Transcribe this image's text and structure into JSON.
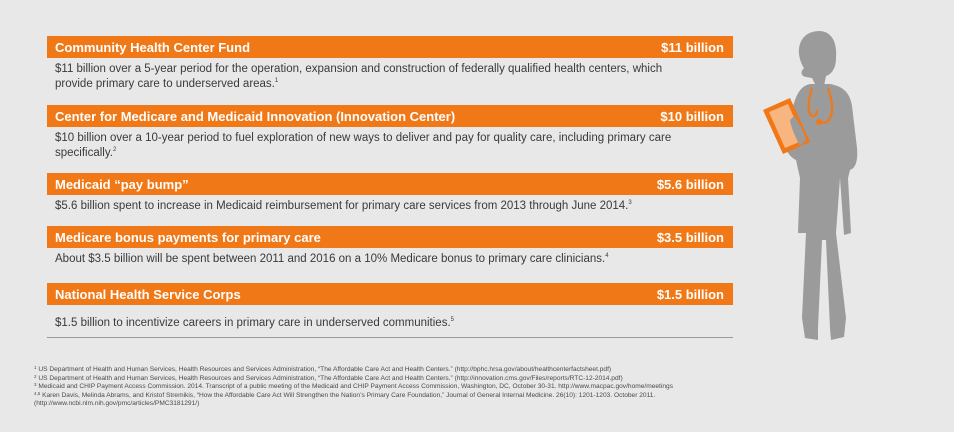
{
  "items": [
    {
      "title": "Community Health Center Fund",
      "amount": "$11 billion",
      "desc": "$11 billion over a 5-year period for the operation, expansion and construction of federally qualified health centers, which provide primary care to underserved areas.",
      "note": "1"
    },
    {
      "title": "Center for Medicare and Medicaid Innovation (Innovation Center)",
      "amount": "$10 billion",
      "desc": "$10 billion over a 10-year period to fuel exploration of new ways to deliver and pay for quality care, including primary care specifically.",
      "note": "2"
    },
    {
      "title": "Medicaid “pay bump”",
      "amount": "$5.6 billion",
      "desc": "$5.6 billion spent to increase in Medicaid reimbursement for primary care services from 2013 through June 2014.",
      "note": "3"
    },
    {
      "title": "Medicare bonus payments for primary care",
      "amount": "$3.5 billion",
      "desc": "About $3.5 billion will be spent between 2011 and 2016 on a 10% Medicare bonus to primary care clinicians.",
      "note": "4"
    },
    {
      "title": "National Health Service Corps",
      "amount": "$1.5 billion",
      "desc": "$1.5 billion to incentivize careers in primary care in underserved communities.",
      "note": "5"
    }
  ],
  "footnotes": [
    {
      "mark": "1",
      "text": "US Department of Health and Human Services, Health Resources and Services Administration, “The Affordable Care Act and Health Centers.” (http://bphc.hrsa.gov/about/healthcenterfactsheet.pdf)"
    },
    {
      "mark": "2",
      "text": "US Department of Health and Human Services, Health Resources and Services Administration, “The Affordable Care Act and Health Centers.” (http://innovation.cms.gov/Files/reports/RTC-12-2014.pdf)"
    },
    {
      "mark": "3",
      "text": "Medicaid and CHIP Payment Access Commission. 2014. Transcript of a public meeting of the Medicaid and CHIP Payment Access Commission, Washington, DC, October 30-31. http://www.macpac.gov/home/meetings"
    },
    {
      "mark": "4,5",
      "text": "Karen Davis, Melinda Abrams, and Kristof Stremikis, “How the Affordable Care Act Will Strengthen the Nation’s Primary Care Foundation,” Journal of General Internal Medicine. 26(10): 1201-1203. October 2011."
    },
    {
      "mark": "",
      "text": "(http://www.ncbi.nlm.nih.gov/pmc/articles/PMC3181291/)"
    }
  ],
  "colors": {
    "accent": "#f07817",
    "silhouette": "#9b9b9b",
    "background": "#e8e8e9"
  },
  "figure": {
    "icon": "doctor-with-tablet-icon"
  }
}
